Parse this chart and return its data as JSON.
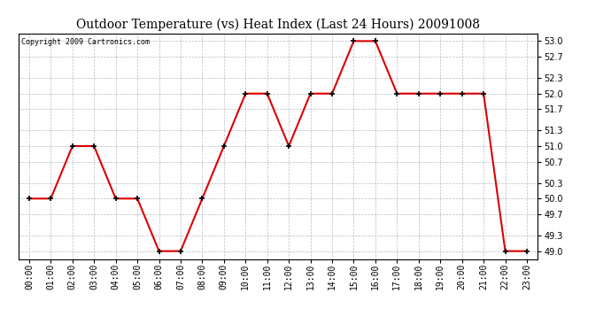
{
  "title": "Outdoor Temperature (vs) Heat Index (Last 24 Hours) 20091008",
  "copyright": "Copyright 2009 Cartronics.com",
  "x_labels": [
    "00:00",
    "01:00",
    "02:00",
    "03:00",
    "04:00",
    "05:00",
    "06:00",
    "07:00",
    "08:00",
    "09:00",
    "10:00",
    "11:00",
    "12:00",
    "13:00",
    "14:00",
    "15:00",
    "16:00",
    "17:00",
    "18:00",
    "19:00",
    "20:00",
    "21:00",
    "22:00",
    "23:00"
  ],
  "y_values": [
    50.0,
    50.0,
    51.0,
    51.0,
    50.0,
    50.0,
    49.0,
    49.0,
    50.0,
    51.0,
    52.0,
    52.0,
    51.0,
    52.0,
    52.0,
    53.0,
    53.0,
    52.0,
    52.0,
    52.0,
    52.0,
    52.0,
    49.0,
    49.0
  ],
  "line_color": "#dd0000",
  "marker": "+",
  "marker_size": 5,
  "marker_color": "#000000",
  "ylim_min": 48.85,
  "ylim_max": 53.15,
  "yticks": [
    49.0,
    49.3,
    49.7,
    50.0,
    50.3,
    50.7,
    51.0,
    51.3,
    51.7,
    52.0,
    52.3,
    52.7,
    53.0
  ],
  "background_color": "#ffffff",
  "plot_bg_color": "#ffffff",
  "grid_color": "#bbbbbb",
  "title_fontsize": 10,
  "copyright_fontsize": 6,
  "tick_fontsize": 7,
  "linewidth": 1.5
}
